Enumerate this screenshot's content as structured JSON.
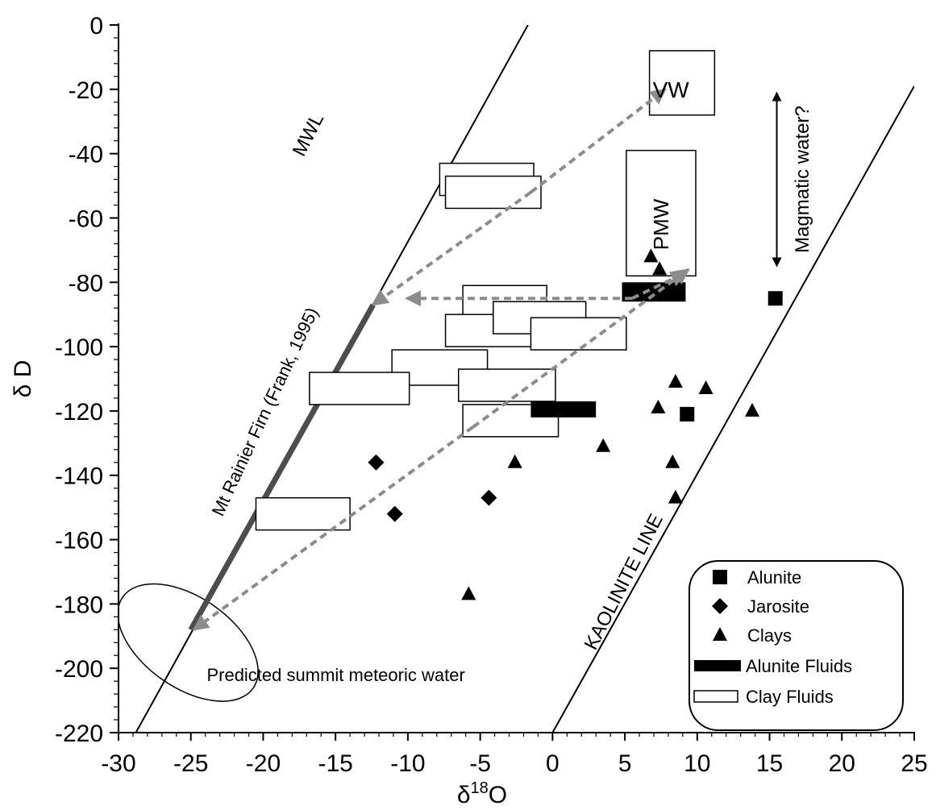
{
  "chart_data": {
    "type": "scatter",
    "xlabel_prefix": "δ",
    "xlabel_sup": "18",
    "xlabel_suffix": "O",
    "ylabel": "δ D",
    "xlim": [
      -30,
      25
    ],
    "ylim": [
      -220,
      0
    ],
    "x_ticks": [
      -30,
      -25,
      -20,
      -15,
      -10,
      -5,
      0,
      5,
      10,
      15,
      20,
      25
    ],
    "y_ticks": [
      0,
      -20,
      -40,
      -60,
      -80,
      -100,
      -120,
      -140,
      -160,
      -180,
      -200,
      -220
    ],
    "lines": [
      {
        "label": "MWL",
        "x": [
          -28.8,
          -1.7
        ],
        "y": [
          -220,
          0
        ]
      },
      {
        "label": "KAOLINITE LINE",
        "x": [
          0,
          25
        ],
        "y": [
          -220,
          -19
        ]
      },
      {
        "label": "Mt Rainier Firn (Frank, 1995)",
        "x": [
          -25,
          -12.4
        ],
        "y": [
          -188,
          -87
        ]
      }
    ],
    "ellipse": {
      "label": "Predicted summit meteoric water",
      "cx": -25.2,
      "cy": -192,
      "rx": 5.5,
      "ry": 14,
      "rotate": 35
    },
    "boxes_labeled": [
      {
        "label": "VW",
        "x": [
          6.7,
          11.2
        ],
        "y": [
          -28,
          -8
        ]
      },
      {
        "label": "PMW",
        "x": [
          5.1,
          9.9
        ],
        "y": [
          -78,
          -39
        ]
      }
    ],
    "magmatic_water": {
      "label": "Magmatic water?",
      "x": 15.5,
      "y": [
        -77,
        -19
      ]
    },
    "series": [
      {
        "name": "Alunite",
        "marker": "square",
        "x": [
          9.3,
          15.4
        ],
        "y": [
          -121,
          -85
        ]
      },
      {
        "name": "Jarosite",
        "marker": "diamond",
        "x": [
          -12.2,
          -10.9,
          -4.4
        ],
        "y": [
          -136,
          -152,
          -147
        ]
      },
      {
        "name": "Clays",
        "marker": "triangle",
        "x": [
          6.8,
          7.4,
          8.5,
          7.3,
          10.6,
          13.8,
          3.5,
          8.3,
          -2.6,
          8.5,
          -5.8
        ],
        "y": [
          -72,
          -76,
          -111,
          -119,
          -113,
          -120,
          -131,
          -136,
          -136,
          -147,
          -177
        ]
      },
      {
        "name": "Alunite Fluids",
        "marker": "filled-rect",
        "boxes": [
          {
            "x": [
              4.8,
              9.2
            ],
            "y": [
              -86,
              -80
            ]
          },
          {
            "x": [
              -1.5,
              3.0
            ],
            "y": [
              -122,
              -117
            ]
          }
        ]
      },
      {
        "name": "Clay Fluids",
        "marker": "open-rect",
        "boxes": [
          {
            "x": [
              -7.8,
              -1.3
            ],
            "y": [
              -53,
              -43
            ]
          },
          {
            "x": [
              -7.4,
              -0.8
            ],
            "y": [
              -57,
              -47
            ]
          },
          {
            "x": [
              -6.2,
              -0.4
            ],
            "y": [
              -91,
              -81
            ]
          },
          {
            "x": [
              -7.4,
              -1.3
            ],
            "y": [
              -100,
              -90
            ]
          },
          {
            "x": [
              -4.1,
              2.3
            ],
            "y": [
              -96,
              -86
            ]
          },
          {
            "x": [
              -1.5,
              5.1
            ],
            "y": [
              -101,
              -91
            ]
          },
          {
            "x": [
              -11.1,
              -4.5
            ],
            "y": [
              -112,
              -101
            ]
          },
          {
            "x": [
              -16.8,
              -9.9
            ],
            "y": [
              -118,
              -108
            ]
          },
          {
            "x": [
              -6.5,
              0.2
            ],
            "y": [
              -117,
              -107
            ]
          },
          {
            "x": [
              -6.2,
              0.4
            ],
            "y": [
              -128,
              -118
            ]
          },
          {
            "x": [
              -20.5,
              -14.0
            ],
            "y": [
              -157,
              -147
            ]
          }
        ]
      }
    ],
    "arrows": [
      {
        "from": [
          -1.5,
          -52
        ],
        "to": [
          -12.4,
          -87
        ]
      },
      {
        "from": [
          -1.5,
          -52
        ],
        "to": [
          7.8,
          -20
        ]
      },
      {
        "from": [
          5.5,
          -85
        ],
        "to": [
          -10.1,
          -85
        ]
      },
      {
        "from": [
          5.5,
          -85
        ],
        "to": [
          9.2,
          -77
        ]
      },
      {
        "from": [
          -5.5,
          -125
        ],
        "to": [
          -24.8,
          -188
        ]
      },
      {
        "from": [
          -5.5,
          -125
        ],
        "to": [
          9.4,
          -76
        ]
      }
    ],
    "legend": {
      "position": "bottom-right",
      "items": [
        "Alunite",
        "Jarosite",
        "Clays",
        "Alunite Fluids",
        "Clay Fluids"
      ]
    },
    "colors": {
      "axis": "#000000",
      "firn": "#4d4d4d",
      "arrow": "#8c8c8c"
    }
  }
}
